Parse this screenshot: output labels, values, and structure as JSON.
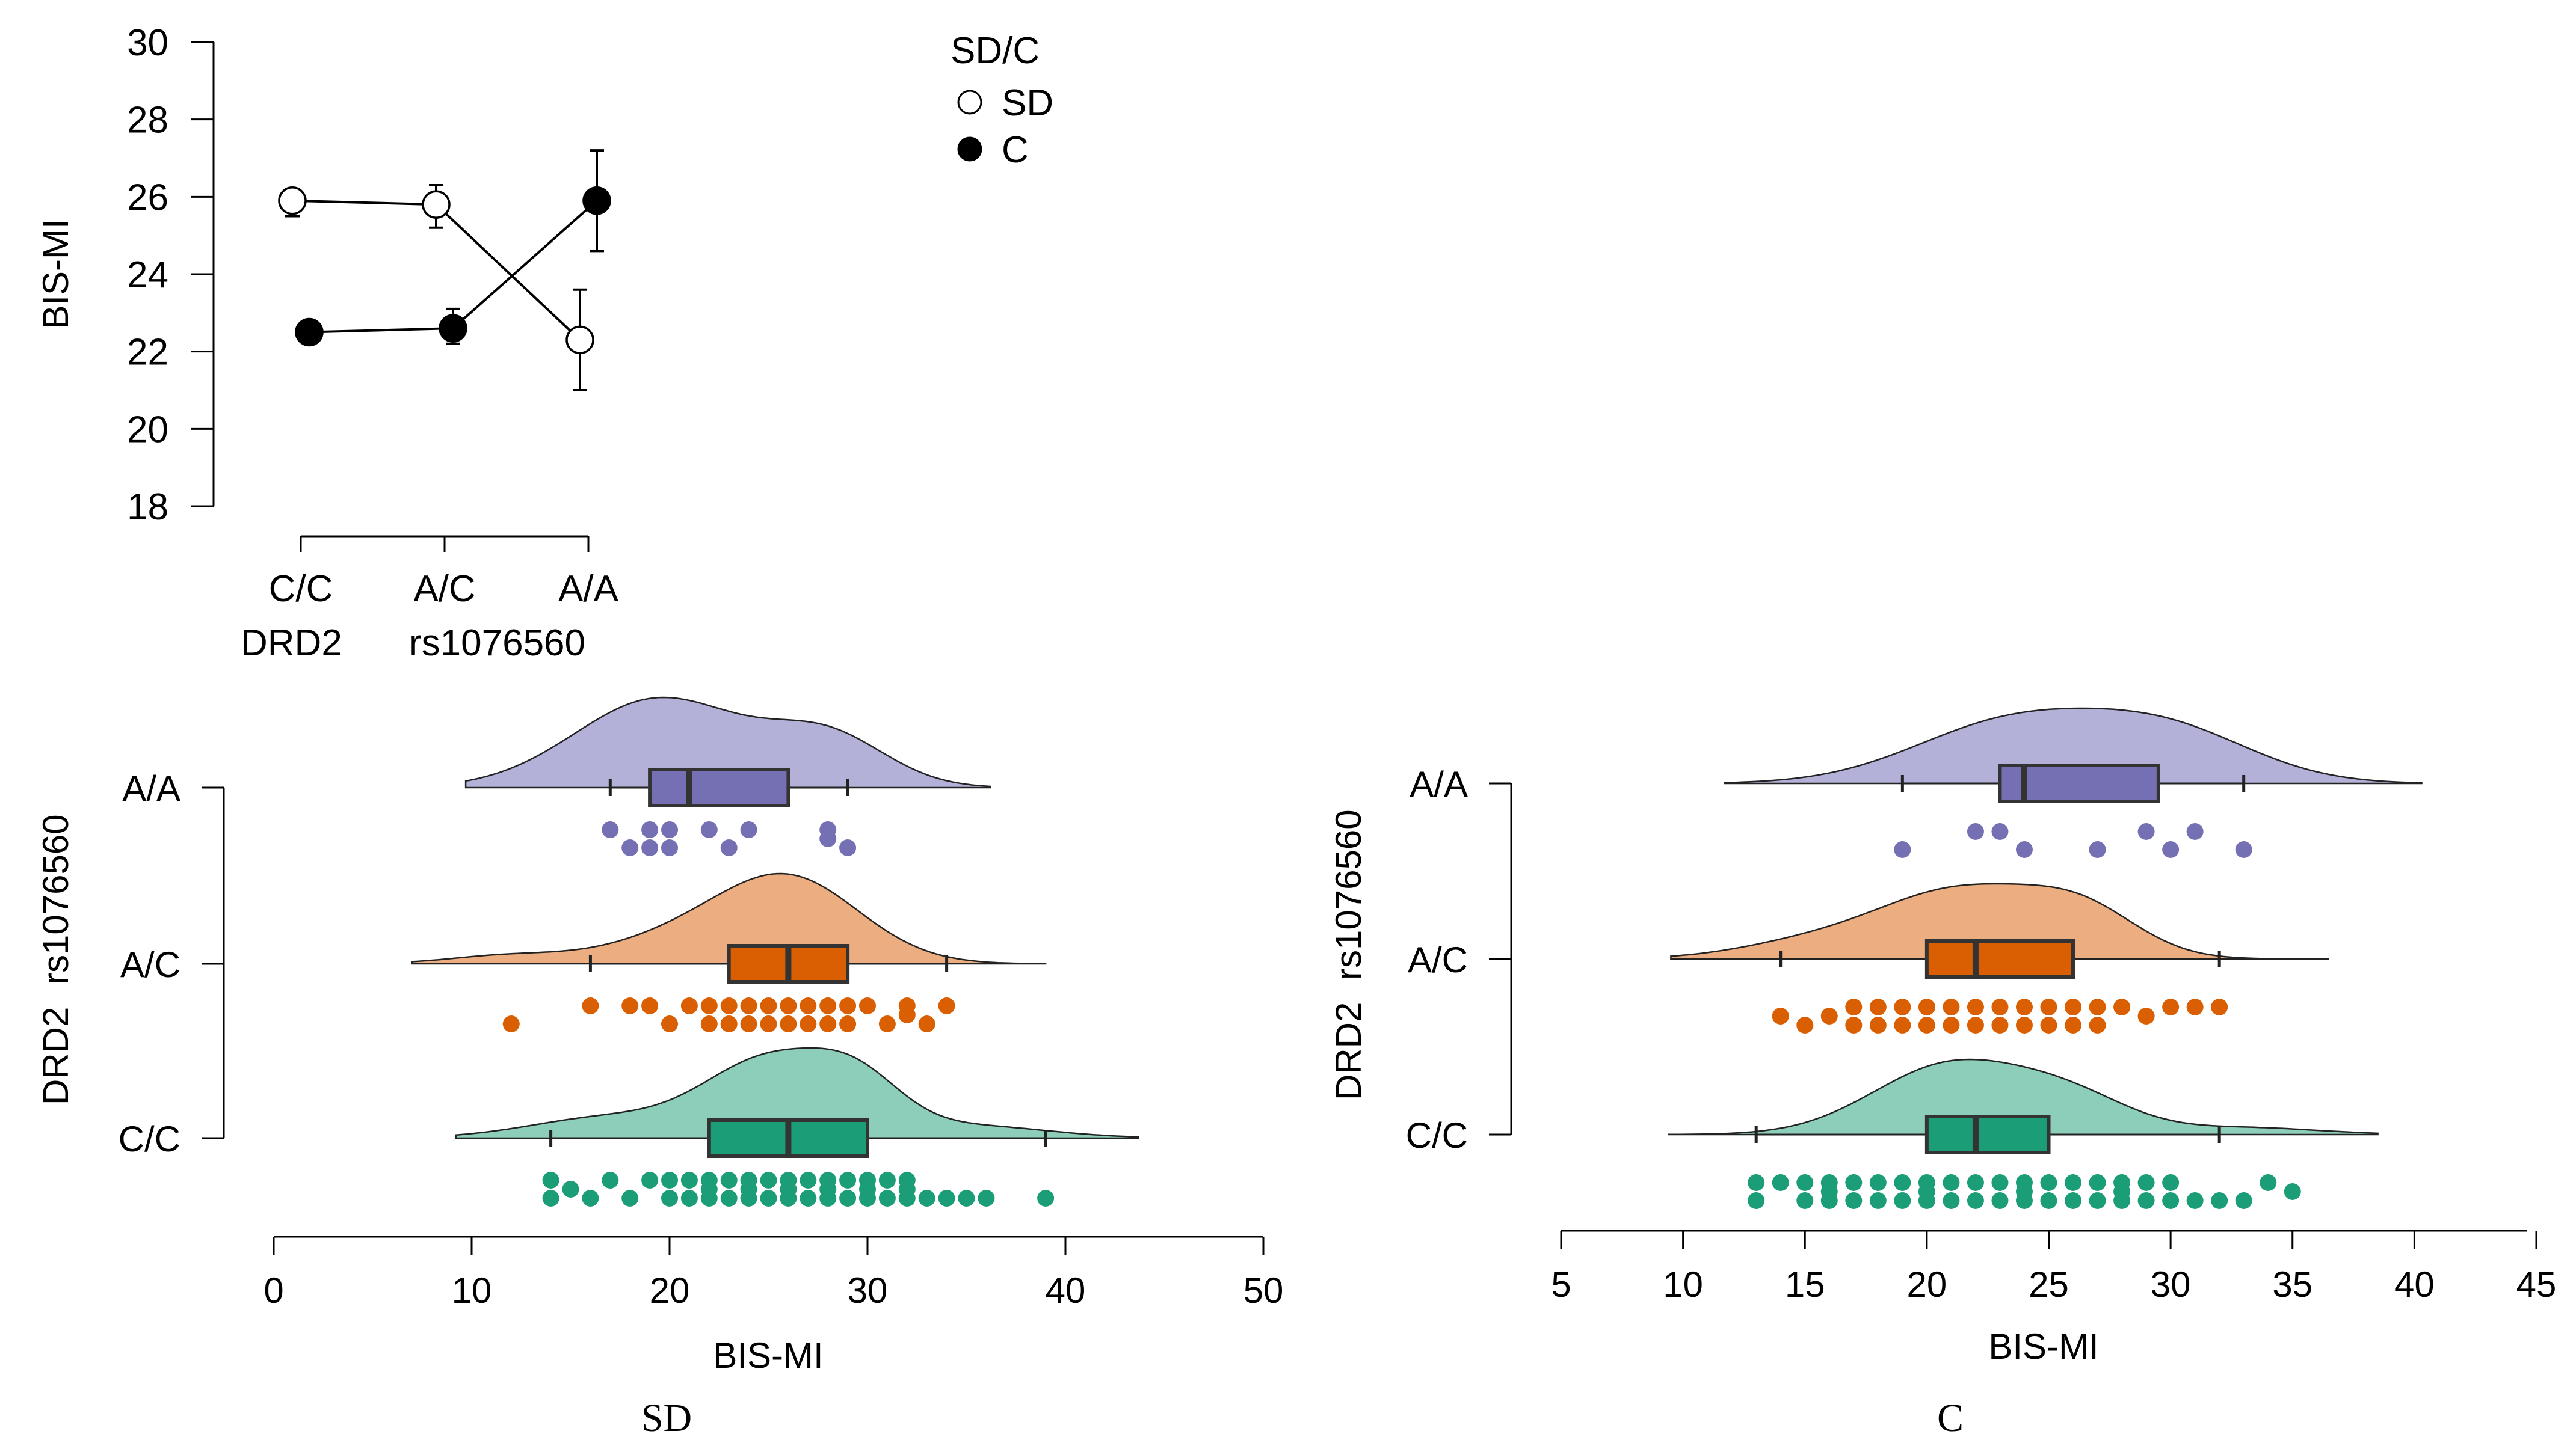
{
  "chart_data": [
    {
      "id": "interaction",
      "type": "line",
      "xlabel_parts": [
        "DRD2",
        "rs1076560"
      ],
      "ylabel": "BIS-MI",
      "categories": [
        "C/C",
        "A/C",
        "A/A"
      ],
      "ylim": [
        18,
        30
      ],
      "yticks": [
        18,
        20,
        22,
        24,
        26,
        28,
        30
      ],
      "legend_title": "SD/C",
      "series": [
        {
          "name": "SD",
          "marker": "open",
          "values": [
            25.9,
            25.8,
            22.3
          ],
          "err_low": [
            25.5,
            25.2,
            21.0
          ],
          "err_high": [
            26.2,
            26.3,
            23.6
          ]
        },
        {
          "name": "C",
          "marker": "filled",
          "values": [
            22.5,
            22.6,
            25.9
          ],
          "err_low": [
            22.2,
            22.2,
            24.6
          ],
          "err_high": [
            22.7,
            23.1,
            27.2
          ]
        }
      ]
    },
    {
      "id": "rain_sd",
      "type": "raincloud",
      "caption": "SD",
      "xlabel": "BIS-MI",
      "ylabel_parts": [
        "DRD2",
        "rs1076560"
      ],
      "xlim": [
        0,
        50
      ],
      "xticks": [
        0,
        10,
        20,
        30,
        40,
        50
      ],
      "groups": [
        {
          "label": "A/A",
          "color": "#7570b3",
          "fill": "#b3b1d8",
          "whisker": [
            17,
            29
          ],
          "q1": 19,
          "median": 21,
          "q3": 26,
          "density": {
            "range": [
              9.7,
              36.2
            ],
            "peaks": [
              [
                19.5,
                4.3,
                1.0
              ],
              [
                28.0,
                3.0,
                0.55
              ]
            ]
          },
          "points": [
            [
              17,
              0
            ],
            [
              18,
              1
            ],
            [
              19,
              0
            ],
            [
              19,
              1
            ],
            [
              20,
              0
            ],
            [
              20,
              1
            ],
            [
              22,
              0
            ],
            [
              23,
              1
            ],
            [
              24,
              0
            ],
            [
              28,
              0
            ],
            [
              28,
              0.5
            ],
            [
              29,
              1
            ]
          ]
        },
        {
          "label": "A/C",
          "color": "#d95f02",
          "fill": "#ecae80",
          "whisker": [
            16,
            34
          ],
          "q1": 23,
          "median": 26,
          "q3": 29,
          "density": {
            "range": [
              7.0,
              39.0
            ],
            "peaks": [
              [
                26.0,
                3.6,
                1.0
              ],
              [
                12.0,
                3.0,
                0.1
              ],
              [
                20.0,
                3.5,
                0.25
              ]
            ]
          },
          "points": [
            [
              12,
              1
            ],
            [
              16,
              0
            ],
            [
              18,
              0
            ],
            [
              19,
              0
            ],
            [
              20,
              1
            ],
            [
              21,
              0
            ],
            [
              22,
              0
            ],
            [
              23,
              0
            ],
            [
              22,
              1
            ],
            [
              24,
              0
            ],
            [
              23,
              1
            ],
            [
              25,
              0
            ],
            [
              24,
              1
            ],
            [
              26,
              0
            ],
            [
              25,
              1
            ],
            [
              27,
              0
            ],
            [
              26,
              1
            ],
            [
              28,
              0
            ],
            [
              27,
              1
            ],
            [
              29,
              0
            ],
            [
              28,
              1
            ],
            [
              30,
              0
            ],
            [
              29,
              1
            ],
            [
              31,
              1
            ],
            [
              32,
              0
            ],
            [
              32,
              0.5
            ],
            [
              33,
              1
            ],
            [
              34,
              0
            ]
          ]
        },
        {
          "label": "C/C",
          "color": "#1b9e77",
          "fill": "#8dceba",
          "whisker": [
            14,
            39
          ],
          "q1": 22,
          "median": 26,
          "q3": 30,
          "density": {
            "range": [
              9.2,
              43.7
            ],
            "peaks": [
              [
                25.0,
                3.2,
                0.9
              ],
              [
                29.5,
                2.3,
                0.55
              ],
              [
                17.0,
                4.0,
                0.25
              ],
              [
                35.0,
                4.0,
                0.15
              ]
            ]
          },
          "points": [
            [
              14,
              0
            ],
            [
              14,
              1
            ],
            [
              15,
              0.5
            ],
            [
              16,
              1
            ],
            [
              17,
              0
            ],
            [
              18,
              1
            ],
            [
              19,
              0
            ],
            [
              20,
              0
            ],
            [
              21,
              0
            ],
            [
              22,
              0
            ],
            [
              23,
              0
            ],
            [
              24,
              0
            ],
            [
              25,
              0
            ],
            [
              26,
              0
            ],
            [
              27,
              0
            ],
            [
              28,
              0
            ],
            [
              29,
              0
            ],
            [
              30,
              0
            ],
            [
              31,
              0
            ],
            [
              32,
              0
            ],
            [
              20,
              1
            ],
            [
              21,
              1
            ],
            [
              22,
              1
            ],
            [
              23,
              1
            ],
            [
              24,
              1
            ],
            [
              25,
              1
            ],
            [
              26,
              1
            ],
            [
              27,
              1
            ],
            [
              28,
              1
            ],
            [
              29,
              1
            ],
            [
              30,
              1
            ],
            [
              31,
              1
            ],
            [
              32,
              1
            ],
            [
              33,
              1
            ],
            [
              34,
              1
            ],
            [
              35,
              1
            ],
            [
              36,
              1
            ],
            [
              39,
              1
            ],
            [
              22,
              0.5
            ],
            [
              24,
              0.5
            ],
            [
              26,
              0.5
            ],
            [
              28,
              0.5
            ],
            [
              30,
              0.5
            ],
            [
              32,
              0.5
            ]
          ]
        }
      ]
    },
    {
      "id": "rain_c",
      "type": "raincloud",
      "caption": "C",
      "xlabel": "BIS-MI",
      "ylabel_parts": [
        "DRD2",
        "rs1076560"
      ],
      "xlim": [
        5,
        45
      ],
      "xticks": [
        5,
        10,
        15,
        20,
        25,
        30,
        35,
        40,
        45
      ],
      "groups": [
        {
          "label": "A/A",
          "color": "#7570b3",
          "fill": "#b3b1d8",
          "whisker": [
            19,
            33
          ],
          "q1": 23,
          "median": 24,
          "q3": 29.5,
          "density": {
            "range": [
              11.7,
              40.3
            ],
            "peaks": [
              [
                23.5,
                4.0,
                1.0
              ],
              [
                30.0,
                3.5,
                0.8
              ]
            ]
          },
          "points": [
            [
              19,
              1
            ],
            [
              22,
              0
            ],
            [
              23,
              0
            ],
            [
              24,
              1
            ],
            [
              27,
              1
            ],
            [
              29,
              0
            ],
            [
              30,
              1
            ],
            [
              31,
              0
            ],
            [
              33,
              1
            ]
          ]
        },
        {
          "label": "A/C",
          "color": "#d95f02",
          "fill": "#ecae80",
          "whisker": [
            14,
            32
          ],
          "q1": 20,
          "median": 22,
          "q3": 26,
          "density": {
            "range": [
              9.5,
              36.5
            ],
            "peaks": [
              [
                21.5,
                3.5,
                1.0
              ],
              [
                26.5,
                2.3,
                0.55
              ],
              [
                15.0,
                3.0,
                0.2
              ]
            ]
          },
          "points": [
            [
              14,
              0.5
            ],
            [
              15,
              1
            ],
            [
              16,
              0.5
            ],
            [
              17,
              0
            ],
            [
              18,
              0
            ],
            [
              17,
              1
            ],
            [
              18,
              1
            ],
            [
              19,
              0
            ],
            [
              19,
              1
            ],
            [
              20,
              0
            ],
            [
              21,
              0
            ],
            [
              20,
              1
            ],
            [
              21,
              1
            ],
            [
              22,
              0
            ],
            [
              23,
              0
            ],
            [
              22,
              1
            ],
            [
              23,
              1
            ],
            [
              24,
              0
            ],
            [
              25,
              0
            ],
            [
              24,
              1
            ],
            [
              25,
              1
            ],
            [
              26,
              0
            ],
            [
              27,
              0
            ],
            [
              26,
              1
            ],
            [
              27,
              1
            ],
            [
              28,
              0
            ],
            [
              29,
              0.5
            ],
            [
              30,
              0
            ],
            [
              31,
              0
            ],
            [
              32,
              0
            ]
          ]
        },
        {
          "label": "C/C",
          "color": "#1b9e77",
          "fill": "#8dceba",
          "whisker": [
            13,
            32
          ],
          "q1": 20,
          "median": 22,
          "q3": 25,
          "density": {
            "range": [
              9.4,
              38.5
            ],
            "peaks": [
              [
                21.0,
                3.2,
                1.0
              ],
              [
                26.0,
                2.5,
                0.45
              ],
              [
                33.0,
                3.0,
                0.1
              ]
            ]
          },
          "points": [
            [
              13,
              0
            ],
            [
              14,
              0
            ],
            [
              15,
              0
            ],
            [
              16,
              0
            ],
            [
              17,
              0
            ],
            [
              18,
              0
            ],
            [
              19,
              0
            ],
            [
              20,
              0
            ],
            [
              21,
              0
            ],
            [
              22,
              0
            ],
            [
              23,
              0
            ],
            [
              24,
              0
            ],
            [
              25,
              0
            ],
            [
              26,
              0
            ],
            [
              27,
              0
            ],
            [
              28,
              0
            ],
            [
              29,
              0
            ],
            [
              30,
              0
            ],
            [
              13,
              1
            ],
            [
              15,
              1
            ],
            [
              16,
              1
            ],
            [
              17,
              1
            ],
            [
              18,
              1
            ],
            [
              19,
              1
            ],
            [
              20,
              1
            ],
            [
              21,
              1
            ],
            [
              22,
              1
            ],
            [
              23,
              1
            ],
            [
              24,
              1
            ],
            [
              25,
              1
            ],
            [
              26,
              1
            ],
            [
              27,
              1
            ],
            [
              28,
              1
            ],
            [
              29,
              1
            ],
            [
              30,
              1
            ],
            [
              31,
              1
            ],
            [
              32,
              1
            ],
            [
              33,
              1
            ],
            [
              34,
              0
            ],
            [
              35,
              0.5
            ],
            [
              16,
              0.5
            ],
            [
              20,
              0.5
            ],
            [
              24,
              0.5
            ],
            [
              28,
              0.5
            ]
          ]
        }
      ]
    }
  ]
}
